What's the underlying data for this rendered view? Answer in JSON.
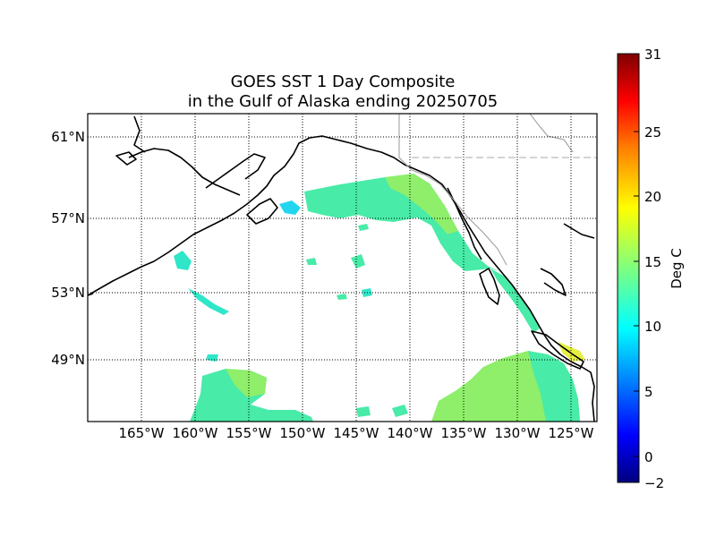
{
  "figure": {
    "title_line1": "GOES SST 1 Day Composite",
    "title_line2": "in the Gulf of Alaska ending 20250705"
  },
  "map": {
    "lat_labels": [
      "61°N",
      "57°N",
      "53°N",
      "49°N"
    ],
    "lon_labels": [
      "165°W",
      "160°W",
      "155°W",
      "150°W",
      "145°W",
      "140°W",
      "135°W",
      "130°W",
      "125°W"
    ],
    "gridline_style": "dotted",
    "coast_color": "#000000",
    "border_color": "#999999"
  },
  "colorbar": {
    "label": "Deg C",
    "tick_labels": [
      "31",
      "25",
      "20",
      "15",
      "10",
      "5",
      "0",
      "−2"
    ],
    "colormap": "jet",
    "colors": [
      "#00007f",
      "#0000ff",
      "#007fff",
      "#00ffff",
      "#7fff7f",
      "#ffff00",
      "#ff7f00",
      "#ff0000",
      "#7f0000"
    ]
  },
  "sst_colors": {
    "cool": "#2fe6c8",
    "mid": "#48eba8",
    "warm": "#8fee6a",
    "cyan": "#22d6f0",
    "hot": "#e6f040"
  }
}
